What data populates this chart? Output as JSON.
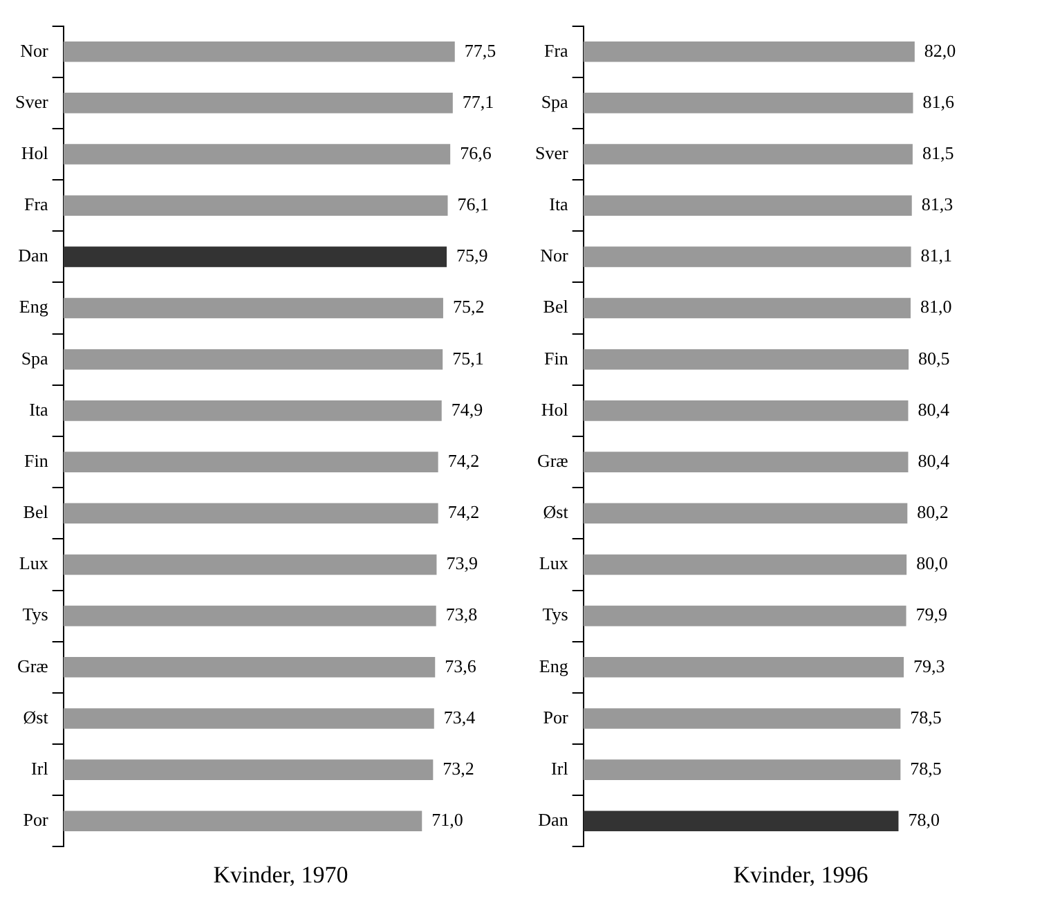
{
  "chart_data": [
    {
      "type": "bar",
      "orientation": "horizontal",
      "xlabel": "Kvinder, 1970",
      "categories": [
        "Nor",
        "Sver",
        "Hol",
        "Fra",
        "Dan",
        "Eng",
        "Spa",
        "Ita",
        "Fin",
        "Bel",
        "Lux",
        "Tys",
        "Græ",
        "Øst",
        "Irl",
        "Por"
      ],
      "values": [
        77.5,
        77.1,
        76.6,
        76.1,
        75.9,
        75.2,
        75.1,
        74.9,
        74.2,
        74.2,
        73.9,
        73.8,
        73.6,
        73.4,
        73.2,
        71.0
      ],
      "value_labels": [
        "77,5",
        "77,1",
        "76,6",
        "76,1",
        "75,9",
        "75,2",
        "75,1",
        "74,9",
        "74,2",
        "74,2",
        "73,9",
        "73,8",
        "73,6",
        "73,4",
        "73,2",
        "71,0"
      ],
      "colors": [
        "#999999",
        "#999999",
        "#999999",
        "#999999",
        "#333333",
        "#999999",
        "#999999",
        "#999999",
        "#999999",
        "#999999",
        "#999999",
        "#999999",
        "#999999",
        "#999999",
        "#999999",
        "#999999"
      ],
      "grid": false,
      "legend": false,
      "tick_labels": "y"
    },
    {
      "type": "bar",
      "orientation": "horizontal",
      "xlabel": "Kvinder, 1996",
      "categories": [
        "Fra",
        "Spa",
        "Sver",
        "Ita",
        "Nor",
        "Bel",
        "Fin",
        "Hol",
        "Græ",
        "Øst",
        "Lux",
        "Tys",
        "Eng",
        "Por",
        "Irl",
        "Dan"
      ],
      "values": [
        82.0,
        81.6,
        81.5,
        81.3,
        81.1,
        81.0,
        80.5,
        80.4,
        80.4,
        80.2,
        80.0,
        79.9,
        79.3,
        78.5,
        78.5,
        78.0
      ],
      "value_labels": [
        "82,0",
        "81,6",
        "81,5",
        "81,3",
        "81,1",
        "81,0",
        "80,5",
        "80,4",
        "80,4",
        "80,2",
        "80,0",
        "79,9",
        "79,3",
        "78,5",
        "78,5",
        "78,0"
      ],
      "colors": [
        "#999999",
        "#999999",
        "#999999",
        "#999999",
        "#999999",
        "#999999",
        "#999999",
        "#999999",
        "#999999",
        "#999999",
        "#999999",
        "#999999",
        "#999999",
        "#999999",
        "#999999",
        "#333333"
      ],
      "grid": false,
      "legend": false,
      "tick_labels": "y"
    }
  ]
}
